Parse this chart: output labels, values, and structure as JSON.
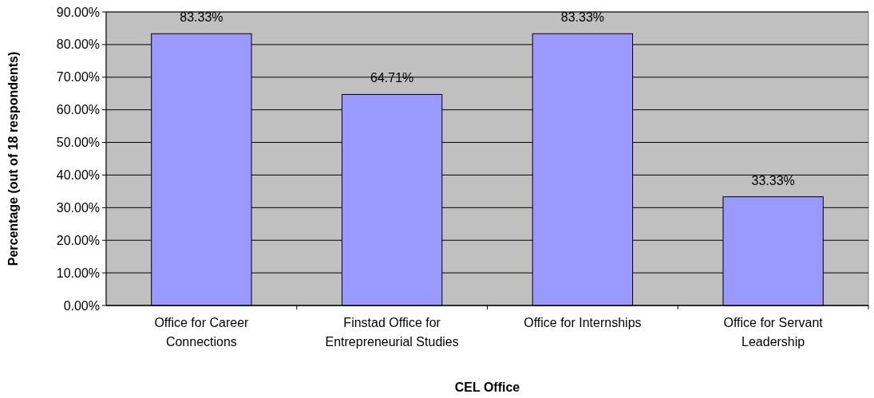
{
  "chart_data": {
    "type": "bar",
    "xlabel": "CEL Office",
    "ylabel": "Percentage (out of 18 respondents)",
    "categories": [
      "Office for Career Connections",
      "Finstad Office for Entrepreneurial Studies",
      "Office for Internships",
      "Office for Servant Leadership"
    ],
    "values": [
      83.33,
      64.71,
      83.33,
      33.33
    ],
    "value_labels": [
      "83.33%",
      "64.71%",
      "83.33%",
      "33.33%"
    ],
    "color": "#9999ff",
    "ylim": [
      0,
      90
    ],
    "yticks": [
      {
        "value": 0,
        "label": "0.00%"
      },
      {
        "value": 10,
        "label": "10.00%"
      },
      {
        "value": 20,
        "label": "20.00%"
      },
      {
        "value": 30,
        "label": "30.00%"
      },
      {
        "value": 40,
        "label": "40.00%"
      },
      {
        "value": 50,
        "label": "50.00%"
      },
      {
        "value": 60,
        "label": "60.00%"
      },
      {
        "value": 70,
        "label": "70.00%"
      },
      {
        "value": 80,
        "label": "80.00%"
      },
      {
        "value": 90,
        "label": "90.00%"
      }
    ],
    "grid": "y"
  }
}
